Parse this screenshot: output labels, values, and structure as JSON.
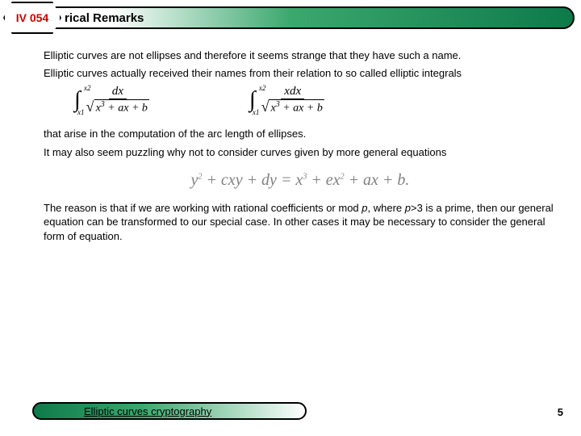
{
  "badge": {
    "label": "IV 054",
    "text_color": "#cc0000"
  },
  "title": "rical Remarks",
  "title_bar": {
    "gradient_start": "#ffffff",
    "gradient_mid": "#3ba86e",
    "gradient_end": "#0d7a4a",
    "border_color": "#000000"
  },
  "content": {
    "p1": "Elliptic curves are not ellipses and therefore it seems strange that they have such a name.",
    "p2": "Elliptic curves actually received their names from their relation to so called elliptic integrals",
    "integrals": [
      {
        "upper": "x2",
        "lower": "x1",
        "numerator": "dx",
        "denominator_poly": "x³ + ax + b"
      },
      {
        "upper": "x2",
        "lower": "x1",
        "numerator": "xdx",
        "denominator_poly": "x³ + ax + b"
      }
    ],
    "p3": "that arise in the computation of the arc length of ellipses.",
    "p4": "It may also seem puzzling why not to consider curves given by more general equations",
    "equation": {
      "text": "y² + cxy + dy = x³ + ex² + ax + b.",
      "color": "#808080",
      "fontsize": 20
    },
    "p5_a": "The reason is that if we are working with rational coefficients or mod ",
    "p5_p1": "p",
    "p5_b": ", where ",
    "p5_p2": "p",
    "p5_c": ">3 is a prime, then our general equation can be transformed to our special case. In other cases it may be necessary to consider the general form of equation."
  },
  "footer": {
    "label": "Elliptic curves cryptography",
    "gradient_start": "#0d7a4a",
    "gradient_mid": "#3ba86e",
    "gradient_end": "#ffffff"
  },
  "page_number": "5",
  "colors": {
    "background": "#ffffff",
    "text": "#000000",
    "equation_text": "#808080"
  }
}
